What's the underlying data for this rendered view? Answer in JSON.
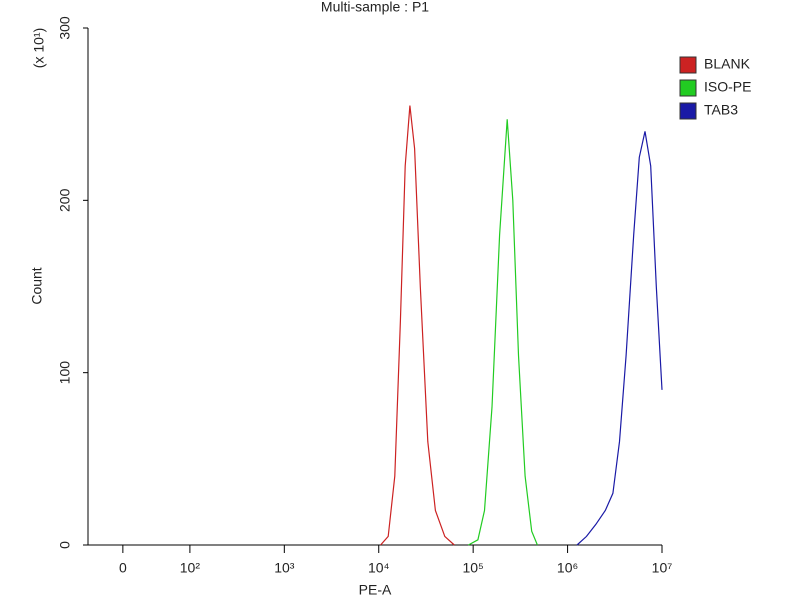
{
  "chart_data": {
    "type": "histogram-overlay",
    "title": "Multi-sample : P1",
    "x_label": "PE-A",
    "y_label": "Count",
    "y_annotation": "(x 10¹)",
    "xscale": "biexponential",
    "xlim": [
      -52,
      10000000
    ],
    "xticks": [
      0,
      {
        "value": 100,
        "label": "10²"
      },
      {
        "value": 1000,
        "label": "10³"
      },
      {
        "value": 10000,
        "label": "10⁴"
      },
      {
        "value": 100000,
        "label": "10⁵"
      },
      {
        "value": 1000000,
        "label": "10⁶"
      },
      {
        "value": 10000000,
        "label": "10⁷"
      }
    ],
    "ylim": [
      0,
      300
    ],
    "yticks": [
      0,
      100,
      200,
      300
    ],
    "legend": "right",
    "series": [
      {
        "name": "BLANK",
        "color": "#cc2222",
        "x": [
          10470,
          12590,
          14790,
          16980,
          19050,
          21380,
          23990,
          27540,
          33110,
          39810,
          50120,
          63100
        ],
        "values": [
          0,
          5,
          40,
          130,
          220,
          255,
          230,
          150,
          60,
          20,
          5,
          0
        ]
      },
      {
        "name": "ISO-PE",
        "color": "#22cc22",
        "x": [
          89130,
          112200,
          131800,
          158500,
          190500,
          229100,
          263000,
          302000,
          354800,
          416900,
          478600
        ],
        "values": [
          0,
          3,
          20,
          80,
          180,
          247,
          200,
          110,
          40,
          8,
          0
        ]
      },
      {
        "name": "TAB3",
        "color": "#1a1aa6",
        "x": [
          1259000,
          1585000,
          1995000,
          2512000,
          3020000,
          3548000,
          4169000,
          5012000,
          5754000,
          6607000,
          7586000,
          8710000,
          10000000
        ],
        "values": [
          0,
          5,
          12,
          20,
          30,
          60,
          110,
          180,
          225,
          240,
          220,
          150,
          90
        ]
      }
    ]
  }
}
